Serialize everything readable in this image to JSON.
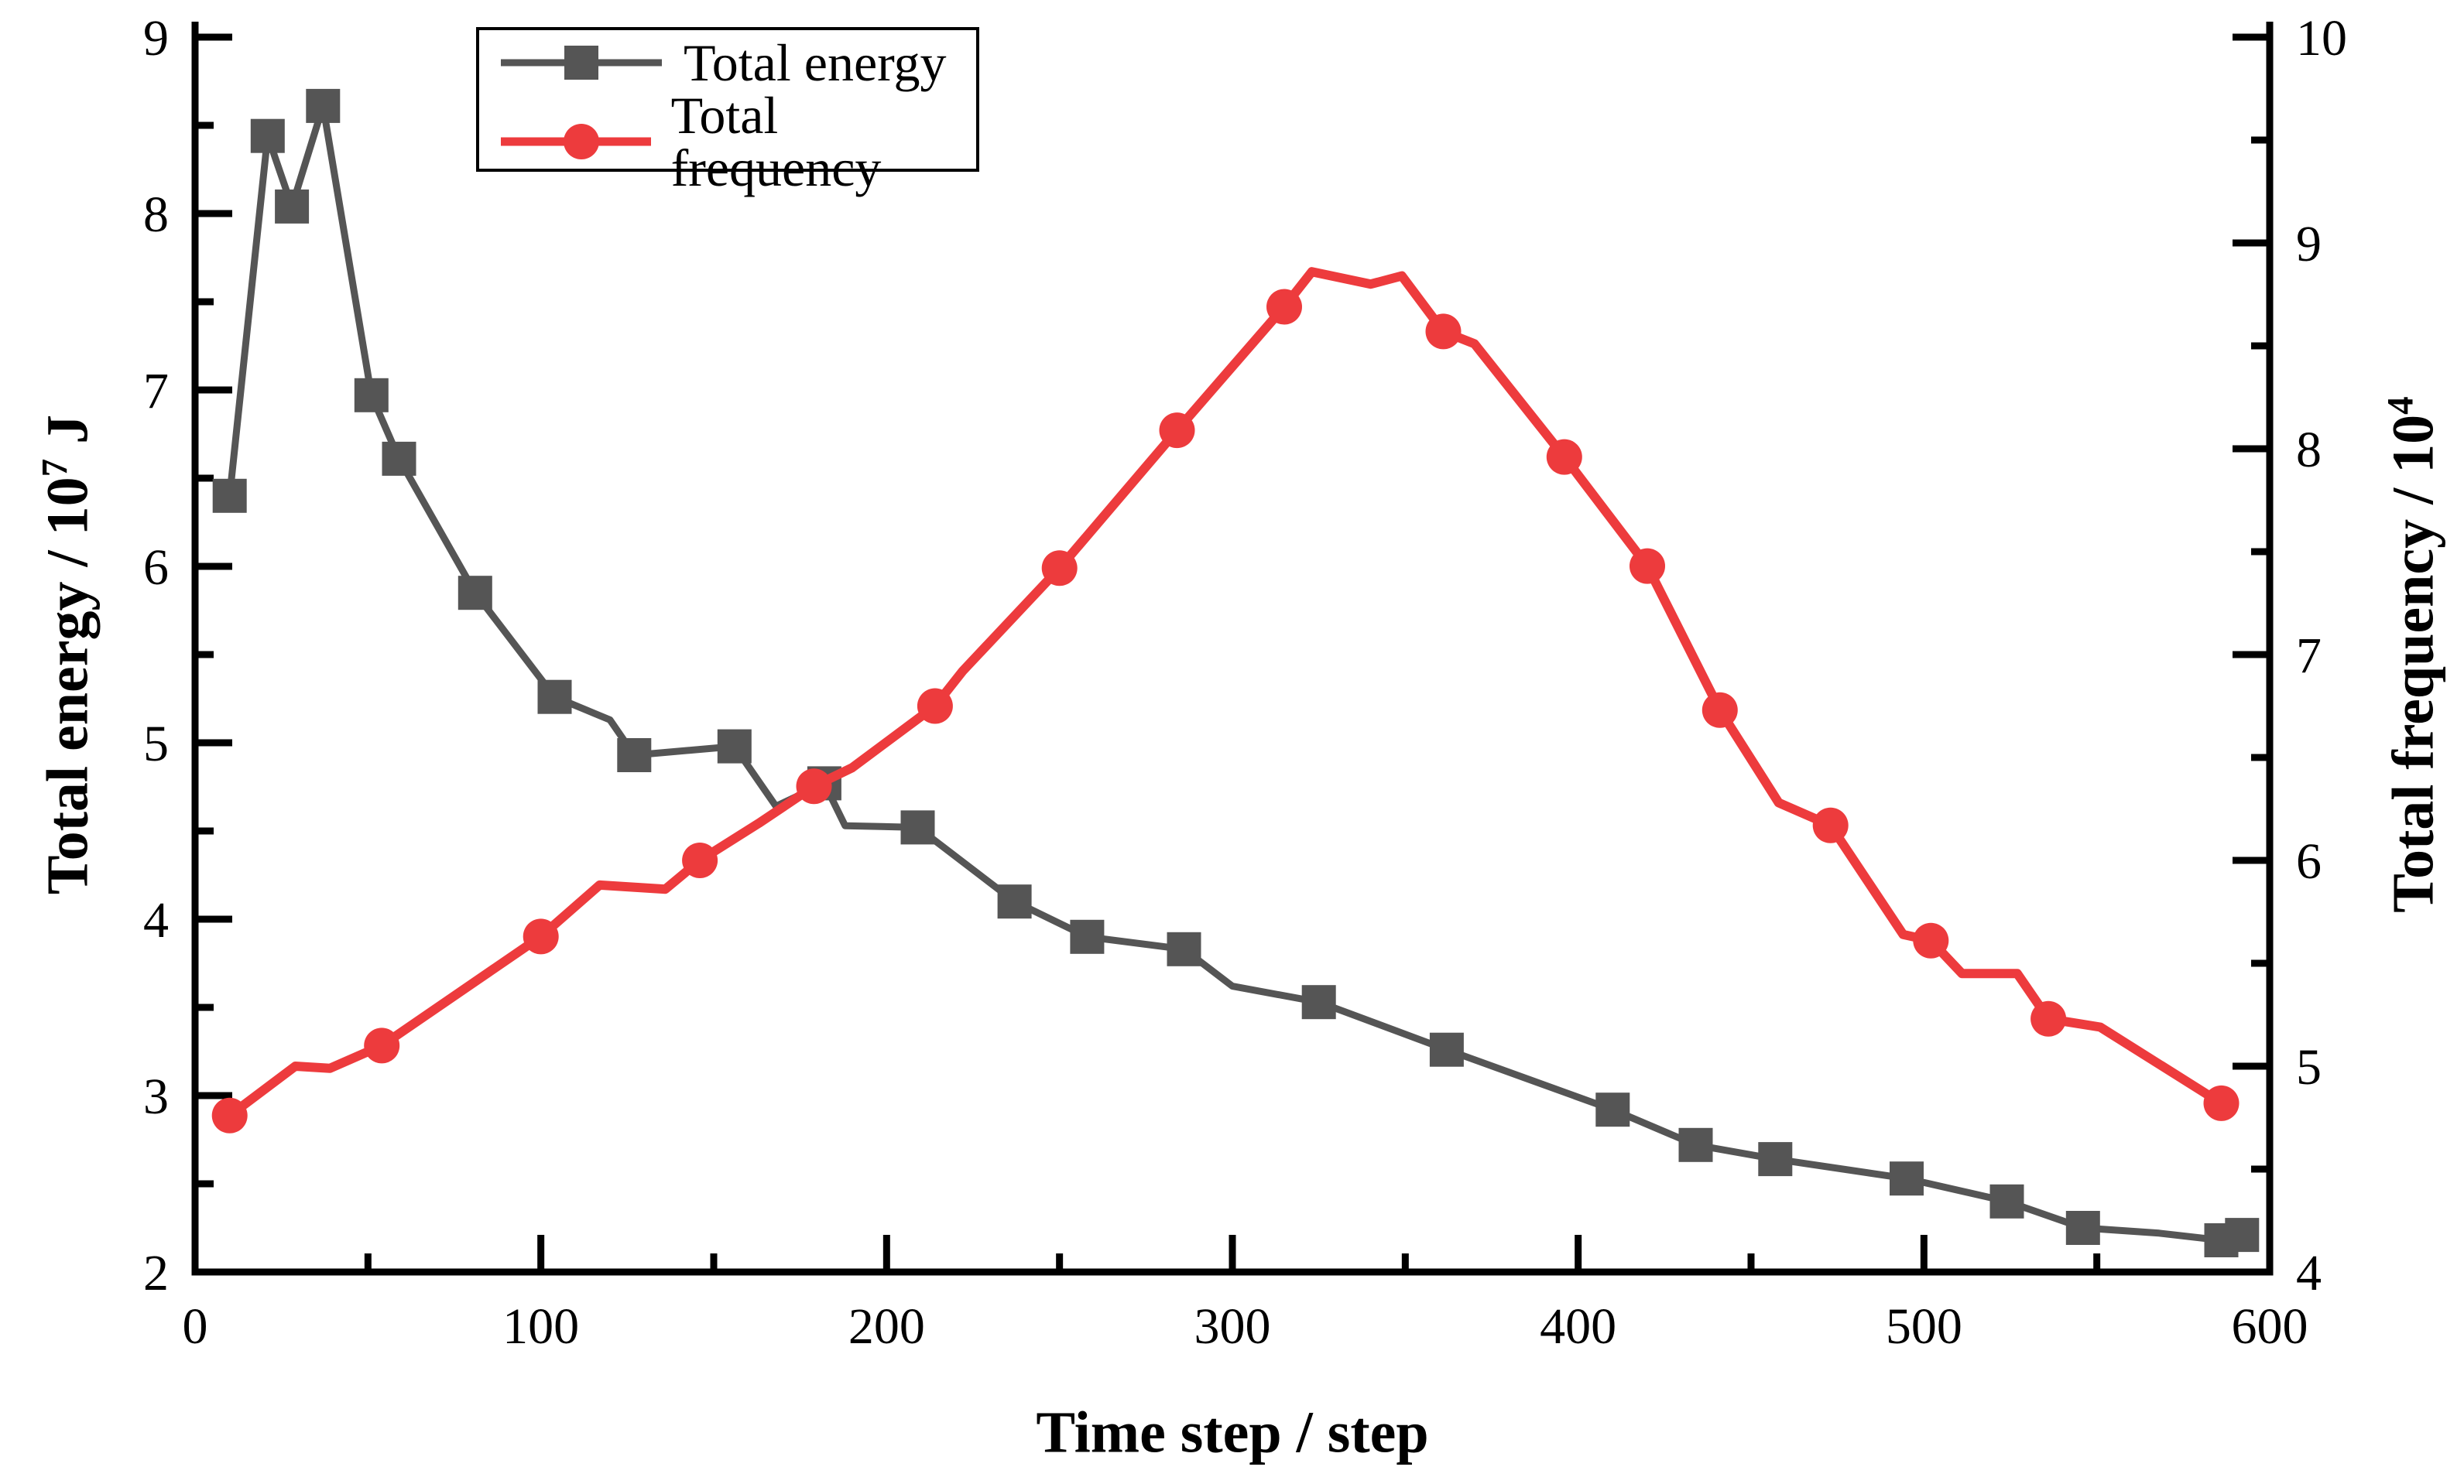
{
  "chart_data": {
    "type": "line",
    "title": "",
    "xlabel": "Time step / step",
    "ylabel_left": {
      "prefix": "Total energy / 10",
      "sup": "7",
      "suffix": " J"
    },
    "ylabel_right": {
      "prefix": "Total frequency / 10",
      "sup": "4",
      "suffix": ""
    },
    "x_axis": {
      "min": 0,
      "max": 600,
      "major_ticks": [
        0,
        100,
        200,
        300,
        400,
        500,
        600
      ],
      "minor_step": 50
    },
    "y_left": {
      "min": 2,
      "max": 9,
      "major_ticks": [
        2,
        3,
        4,
        5,
        6,
        7,
        8,
        9
      ],
      "minor_step": 0.5
    },
    "y_right": {
      "min": 4,
      "max": 10,
      "major_ticks": [
        4,
        5,
        6,
        7,
        8,
        9,
        10
      ],
      "minor_step": 0.5
    },
    "grid": "off",
    "legend_position": "top-left-inside",
    "colors": {
      "energy": "#555555",
      "frequency": "#ED3B3D",
      "axis": "#000000"
    },
    "legend": [
      {
        "label": "Total energy",
        "color": "#555555",
        "marker": "square"
      },
      {
        "label": "Total frequency",
        "color": "#ED3B3D",
        "marker": "circle"
      }
    ],
    "series": [
      {
        "name": "Total energy",
        "axis": "left",
        "color": "#555555",
        "marker": "square",
        "points": [
          [
            10,
            6.4,
            1
          ],
          [
            21,
            8.44,
            1
          ],
          [
            28,
            8.04,
            1
          ],
          [
            37,
            8.61,
            1
          ],
          [
            51,
            6.97,
            1
          ],
          [
            59,
            6.61,
            1
          ],
          [
            81,
            5.85,
            1
          ],
          [
            104,
            5.26,
            1
          ],
          [
            120,
            5.13,
            0
          ],
          [
            127,
            4.93,
            1
          ],
          [
            156,
            4.98,
            1
          ],
          [
            168,
            4.64,
            0
          ],
          [
            182,
            4.77,
            1
          ],
          [
            188,
            4.53,
            0
          ],
          [
            209,
            4.52,
            1
          ],
          [
            237,
            4.1,
            1
          ],
          [
            258,
            3.9,
            1
          ],
          [
            286,
            3.83,
            1
          ],
          [
            300,
            3.62,
            0
          ],
          [
            325,
            3.53,
            1
          ],
          [
            362,
            3.26,
            1
          ],
          [
            410,
            2.92,
            1
          ],
          [
            434,
            2.72,
            1
          ],
          [
            457,
            2.64,
            1
          ],
          [
            495,
            2.53,
            1
          ],
          [
            524,
            2.4,
            1
          ],
          [
            546,
            2.25,
            1
          ],
          [
            568,
            2.22,
            0
          ],
          [
            586,
            2.18,
            1
          ],
          [
            592,
            2.21,
            1
          ]
        ]
      },
      {
        "name": "Total frequency",
        "axis": "right",
        "color": "#ED3B3D",
        "marker": "circle",
        "points": [
          [
            10,
            4.76,
            1
          ],
          [
            29,
            5.0,
            0
          ],
          [
            39,
            4.99,
            0
          ],
          [
            54,
            5.1,
            1
          ],
          [
            100,
            5.63,
            1
          ],
          [
            117,
            5.88,
            0
          ],
          [
            136,
            5.86,
            0
          ],
          [
            146,
            6.0,
            1
          ],
          [
            163,
            6.18,
            0
          ],
          [
            179,
            6.36,
            1
          ],
          [
            190,
            6.45,
            0
          ],
          [
            214,
            6.75,
            1
          ],
          [
            222,
            6.92,
            0
          ],
          [
            250,
            7.42,
            1
          ],
          [
            284,
            8.09,
            1
          ],
          [
            315,
            8.69,
            1
          ],
          [
            323,
            8.86,
            0
          ],
          [
            340,
            8.8,
            0
          ],
          [
            349,
            8.84,
            0
          ],
          [
            361,
            8.57,
            1
          ],
          [
            370,
            8.51,
            0
          ],
          [
            396,
            7.96,
            1
          ],
          [
            420,
            7.43,
            1
          ],
          [
            441,
            6.73,
            1
          ],
          [
            458,
            6.28,
            0
          ],
          [
            473,
            6.17,
            1
          ],
          [
            494,
            5.64,
            0
          ],
          [
            502,
            5.61,
            1
          ],
          [
            511,
            5.45,
            0
          ],
          [
            527,
            5.45,
            0
          ],
          [
            536,
            5.23,
            1
          ],
          [
            551,
            5.19,
            0
          ],
          [
            586,
            4.82,
            1
          ]
        ]
      }
    ]
  }
}
